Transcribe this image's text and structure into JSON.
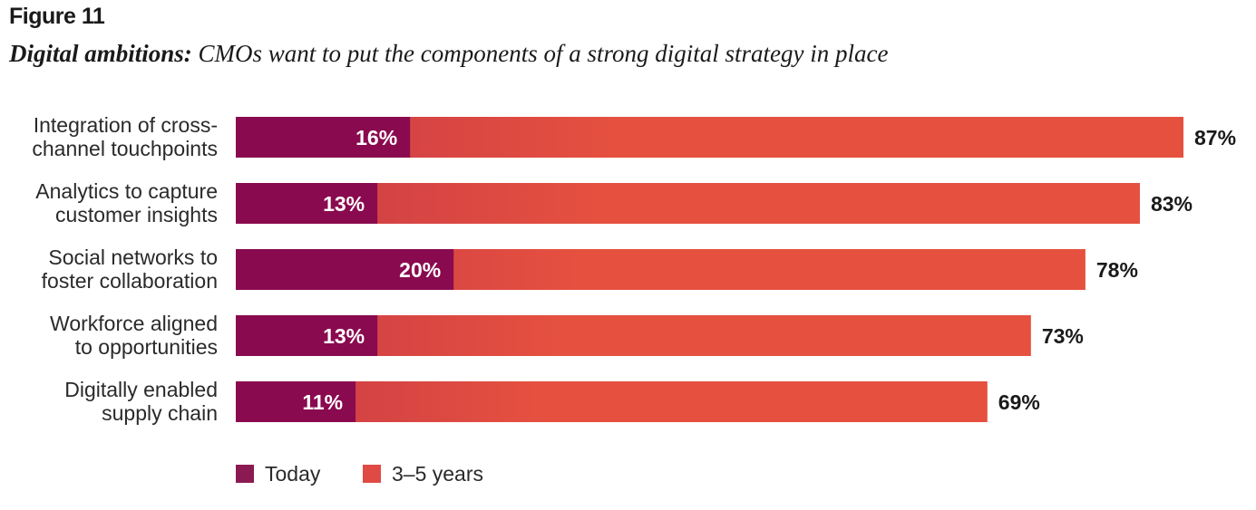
{
  "header": {
    "figure_label": "Figure 11",
    "subtitle_bold": "Digital ambitions:",
    "subtitle_rest": " CMOs want to put the components of a strong digital strategy in place"
  },
  "colors": {
    "today": "#8a0a4f",
    "future_start": "#c93a48",
    "future_end": "#e5503f",
    "legend_today": "#8c1a52",
    "legend_future": "#e04a44"
  },
  "chart_data": {
    "type": "bar",
    "orientation": "horizontal",
    "stacked": "overlay",
    "title": "Digital ambitions: CMOs want to put the components of a strong digital strategy in place",
    "categories": [
      [
        "Integration of cross-",
        "channel touchpoints"
      ],
      [
        "Analytics to capture",
        "customer insights"
      ],
      [
        "Social networks to",
        "foster collaboration"
      ],
      [
        "Workforce aligned",
        "to opportunities"
      ],
      [
        "Digitally enabled",
        "supply chain"
      ]
    ],
    "series": [
      {
        "name": "Today",
        "values": [
          16,
          13,
          20,
          13,
          11
        ]
      },
      {
        "name": "3–5 years",
        "values": [
          87,
          83,
          78,
          73,
          69
        ]
      }
    ],
    "value_format": "{v}%",
    "xlim": [
      0,
      87
    ],
    "grid": false,
    "legend": {
      "position": "bottom-left",
      "entries": [
        "Today",
        "3–5 years"
      ]
    }
  }
}
